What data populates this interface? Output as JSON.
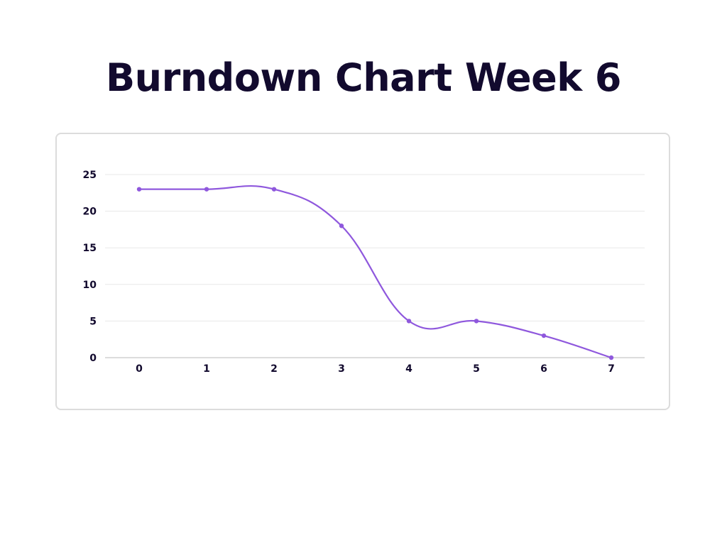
{
  "title": "Burndown Chart Week 6",
  "colors": {
    "line": "#8f58dd",
    "title": "#120a2e",
    "grid": "#e8e8e8",
    "axis": "#c8c8c8",
    "card_border": "#dcdcdc"
  },
  "chart_data": {
    "type": "line",
    "title": "",
    "xlabel": "",
    "ylabel": "",
    "x": [
      0,
      1,
      2,
      3,
      4,
      5,
      6,
      7
    ],
    "x_tick_labels": [
      "0",
      "1",
      "2",
      "3",
      "4",
      "5",
      "6",
      "7"
    ],
    "y_ticks": [
      0,
      5,
      10,
      15,
      20,
      25
    ],
    "y_tick_labels": [
      "0",
      "5",
      "10",
      "15",
      "20",
      "25"
    ],
    "ylim": [
      0,
      25
    ],
    "xlim": [
      0,
      7
    ],
    "grid": true,
    "smooth": true,
    "markers": true,
    "legend": "none",
    "series": [
      {
        "values": [
          23,
          23,
          23,
          18,
          5,
          5,
          3,
          0
        ]
      }
    ]
  }
}
